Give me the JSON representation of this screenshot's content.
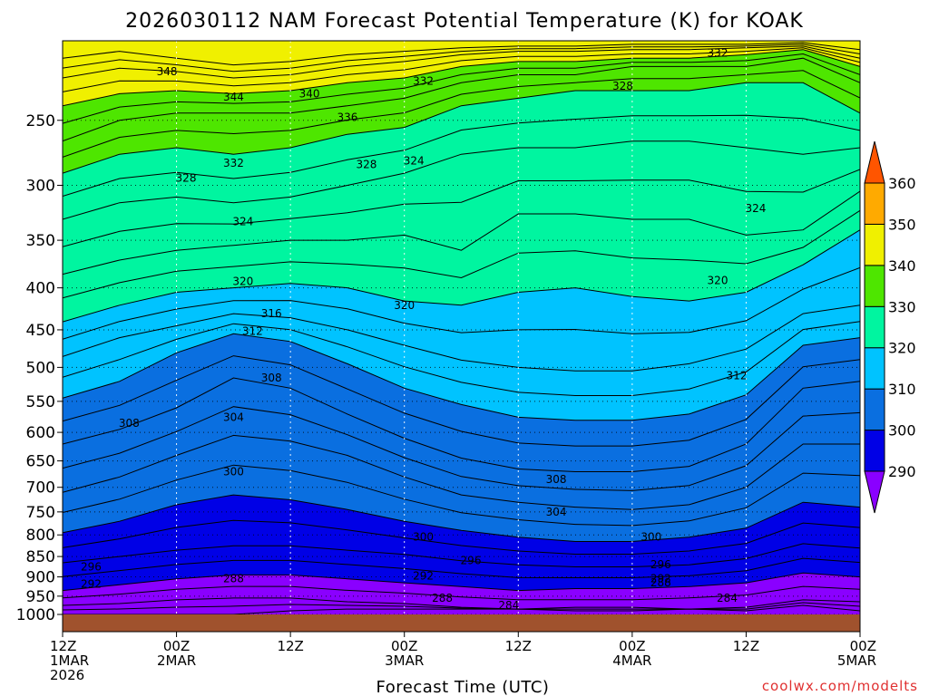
{
  "chart_data": {
    "type": "heatmap",
    "subtype": "time-height filled contour",
    "title": "2026030112 NAM Forecast Potential Temperature (K) for KOAK",
    "xlabel": "Forecast Time (UTC)",
    "ylabel": "",
    "y_scale": "log-pressure (hPa), inverted",
    "ylim": [
      1000,
      200
    ],
    "y_ticks": [
      250,
      300,
      350,
      400,
      450,
      500,
      550,
      600,
      650,
      700,
      750,
      800,
      850,
      900,
      950,
      1000
    ],
    "x_ticks": [
      {
        "hour": 0,
        "lines": [
          "12Z",
          "1MAR",
          "2026"
        ]
      },
      {
        "hour": 12,
        "lines": [
          "00Z",
          "2MAR"
        ]
      },
      {
        "hour": 24,
        "lines": [
          "12Z"
        ]
      },
      {
        "hour": 36,
        "lines": [
          "00Z",
          "3MAR"
        ]
      },
      {
        "hour": 48,
        "lines": [
          "12Z"
        ]
      },
      {
        "hour": 60,
        "lines": [
          "00Z",
          "4MAR"
        ]
      },
      {
        "hour": 72,
        "lines": [
          "12Z"
        ]
      },
      {
        "hour": 84,
        "lines": [
          "00Z",
          "5MAR"
        ]
      }
    ],
    "grid": "dotted",
    "colorbar": {
      "placement": "right",
      "levels": [
        290,
        300,
        310,
        320,
        330,
        340,
        350,
        360
      ],
      "colors": [
        "#8a00ff",
        "#0000e6",
        "#0a6fe0",
        "#00c3ff",
        "#00f5a0",
        "#4ee600",
        "#f0f000",
        "#ffaa00",
        "#ff5500"
      ],
      "extend": "both"
    },
    "ground_color": "#a0522d",
    "contour_interval": 2,
    "isentropes_hPa": {
      "hours": [
        0,
        6,
        12,
        18,
        24,
        30,
        36,
        42,
        48,
        54,
        60,
        66,
        72,
        78,
        84
      ],
      "levels": [
        {
          "theta": 284,
          "p": [
            1000,
            1000,
            1000,
            1000,
            990,
            985,
            985,
            985,
            985,
            980,
            980,
            985,
            990,
            975,
            990
          ]
        },
        {
          "theta": 288,
          "p": [
            975,
            970,
            960,
            955,
            955,
            965,
            970,
            980,
            985,
            990,
            990,
            985,
            980,
            960,
            965
          ]
        },
        {
          "theta": 292,
          "p": [
            935,
            920,
            905,
            895,
            895,
            905,
            915,
            925,
            935,
            930,
            930,
            925,
            915,
            890,
            900
          ]
        },
        {
          "theta": 296,
          "p": [
            865,
            850,
            835,
            825,
            825,
            835,
            845,
            860,
            870,
            875,
            875,
            870,
            855,
            820,
            830
          ]
        },
        {
          "theta": 300,
          "p": [
            795,
            770,
            735,
            715,
            725,
            745,
            770,
            790,
            805,
            815,
            815,
            805,
            785,
            730,
            740
          ]
        },
        {
          "theta": 304,
          "p": [
            710,
            680,
            640,
            605,
            615,
            640,
            680,
            715,
            730,
            740,
            745,
            735,
            700,
            620,
            620
          ]
        },
        {
          "theta": 308,
          "p": [
            620,
            595,
            560,
            515,
            530,
            570,
            610,
            645,
            665,
            670,
            670,
            660,
            620,
            530,
            520
          ]
        },
        {
          "theta": 312,
          "p": [
            545,
            520,
            480,
            455,
            465,
            495,
            530,
            555,
            575,
            580,
            580,
            570,
            540,
            470,
            460
          ]
        },
        {
          "theta": 316,
          "p": [
            485,
            460,
            445,
            430,
            435,
            450,
            470,
            490,
            500,
            505,
            505,
            495,
            475,
            430,
            420
          ]
        },
        {
          "theta": 320,
          "p": [
            440,
            420,
            405,
            400,
            395,
            400,
            415,
            420,
            405,
            400,
            410,
            415,
            405,
            375,
            340
          ]
        },
        {
          "theta": 324,
          "p": [
            385,
            370,
            360,
            355,
            350,
            350,
            345,
            360,
            325,
            325,
            330,
            330,
            345,
            340,
            305
          ]
        },
        {
          "theta": 328,
          "p": [
            330,
            315,
            310,
            315,
            310,
            300,
            290,
            275,
            270,
            270,
            265,
            265,
            270,
            275,
            270
          ]
        },
        {
          "theta": 332,
          "p": [
            290,
            275,
            270,
            275,
            270,
            260,
            255,
            240,
            235,
            230,
            230,
            230,
            225,
            225,
            245
          ]
        },
        {
          "theta": 336,
          "p": [
            265,
            250,
            245,
            245,
            245,
            240,
            235,
            225,
            220,
            220,
            215,
            215,
            215,
            210,
            225
          ]
        },
        {
          "theta": 340,
          "p": [
            240,
            232,
            230,
            232,
            230,
            225,
            222,
            215,
            212,
            212,
            210,
            210,
            208,
            205,
            215
          ]
        },
        {
          "theta": 344,
          "p": [
            222,
            216,
            218,
            222,
            220,
            215,
            212,
            208,
            206,
            206,
            205,
            205,
            204,
            203,
            210
          ]
        },
        {
          "theta": 348,
          "p": [
            210,
            206,
            210,
            214,
            212,
            208,
            206,
            204,
            203,
            203,
            202,
            202,
            202,
            201,
            205
          ]
        }
      ]
    },
    "contour_labels": [
      {
        "text": "348",
        "hour": 11,
        "p": 218
      },
      {
        "text": "344",
        "hour": 18,
        "p": 234
      },
      {
        "text": "340",
        "hour": 26,
        "p": 232
      },
      {
        "text": "336",
        "hour": 30,
        "p": 248
      },
      {
        "text": "332",
        "hour": 18,
        "p": 282
      },
      {
        "text": "332",
        "hour": 38,
        "p": 224
      },
      {
        "text": "332",
        "hour": 69,
        "p": 207
      },
      {
        "text": "328",
        "hour": 13,
        "p": 294
      },
      {
        "text": "328",
        "hour": 32,
        "p": 283
      },
      {
        "text": "328",
        "hour": 59,
        "p": 227
      },
      {
        "text": "324",
        "hour": 19,
        "p": 332
      },
      {
        "text": "324",
        "hour": 37,
        "p": 280
      },
      {
        "text": "324",
        "hour": 73,
        "p": 320
      },
      {
        "text": "320",
        "hour": 19,
        "p": 393
      },
      {
        "text": "320",
        "hour": 36,
        "p": 420
      },
      {
        "text": "320",
        "hour": 69,
        "p": 392
      },
      {
        "text": "316",
        "hour": 22,
        "p": 430
      },
      {
        "text": "312",
        "hour": 20,
        "p": 452
      },
      {
        "text": "312",
        "hour": 71,
        "p": 512
      },
      {
        "text": "308",
        "hour": 22,
        "p": 515
      },
      {
        "text": "308",
        "hour": 7,
        "p": 585
      },
      {
        "text": "308",
        "hour": 52,
        "p": 685
      },
      {
        "text": "304",
        "hour": 18,
        "p": 575
      },
      {
        "text": "304",
        "hour": 52,
        "p": 750
      },
      {
        "text": "300",
        "hour": 18,
        "p": 670
      },
      {
        "text": "300",
        "hour": 38,
        "p": 805
      },
      {
        "text": "300",
        "hour": 62,
        "p": 805
      },
      {
        "text": "296",
        "hour": 3,
        "p": 875
      },
      {
        "text": "296",
        "hour": 43,
        "p": 860
      },
      {
        "text": "296",
        "hour": 63,
        "p": 870
      },
      {
        "text": "292",
        "hour": 3,
        "p": 918
      },
      {
        "text": "292",
        "hour": 38,
        "p": 898
      },
      {
        "text": "292",
        "hour": 63,
        "p": 905
      },
      {
        "text": "288",
        "hour": 18,
        "p": 905
      },
      {
        "text": "288",
        "hour": 40,
        "p": 955
      },
      {
        "text": "288",
        "hour": 63,
        "p": 915
      },
      {
        "text": "284",
        "hour": 47,
        "p": 975
      },
      {
        "text": "284",
        "hour": 70,
        "p": 955
      }
    ]
  },
  "credit": "coolwx.com/modelts"
}
